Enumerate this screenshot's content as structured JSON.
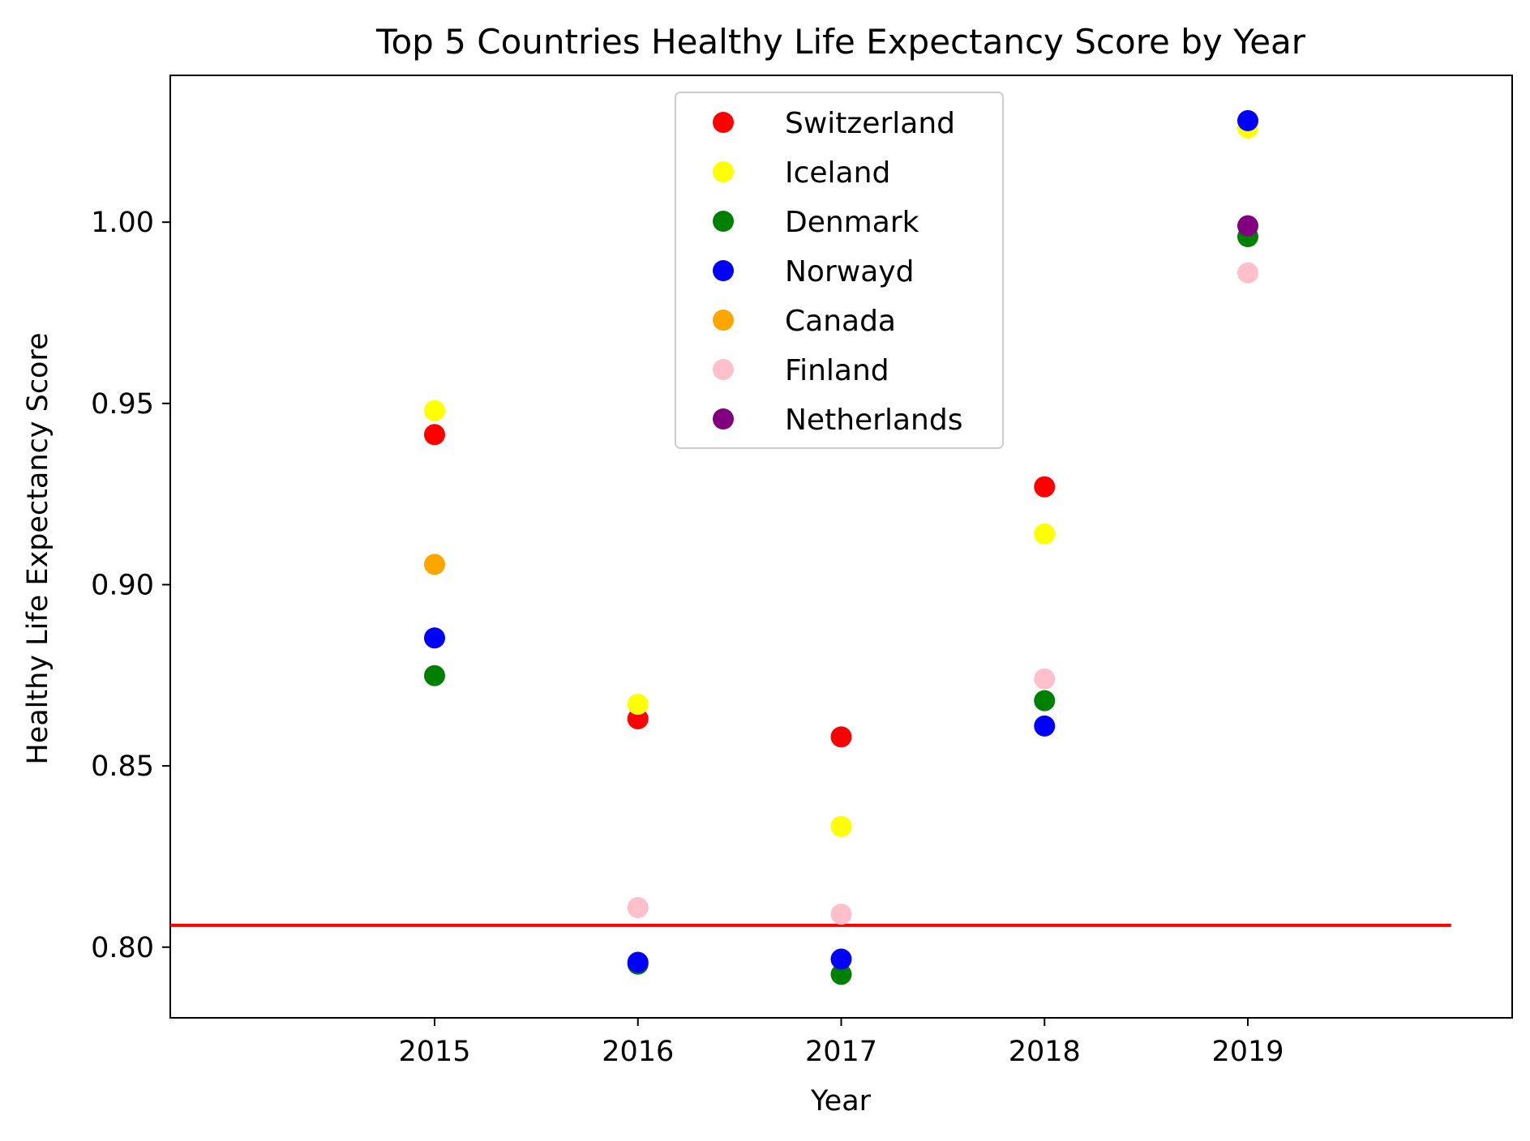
{
  "chart_data": {
    "type": "scatter",
    "title": "Top 5 Countries Healthy Life Expectancy Score by Year",
    "xlabel": "Year",
    "ylabel": "Healthy Life Expectancy Score",
    "x_ticks": [
      "2015",
      "2016",
      "2017",
      "2018",
      "2019"
    ],
    "y_ticks": [
      "0.80",
      "0.85",
      "0.90",
      "0.95",
      "1.00"
    ],
    "xlim": [
      2013.7,
      2020.3
    ],
    "ylim": [
      0.7805,
      1.0405
    ],
    "grid": false,
    "legend_position": "top-center",
    "reference_line": {
      "y": 0.806,
      "x_range": [
        2013.7,
        2020.0
      ],
      "color": "#ff0000"
    },
    "series": [
      {
        "name": "Switzerland",
        "color": "#ff0000",
        "points": [
          [
            2015,
            0.9414
          ],
          [
            2016,
            0.863
          ],
          [
            2017,
            0.858
          ],
          [
            2018,
            0.927
          ]
        ]
      },
      {
        "name": "Iceland",
        "color": "#ffff00",
        "points": [
          [
            2015,
            0.948
          ],
          [
            2016,
            0.867
          ],
          [
            2017,
            0.8333
          ],
          [
            2018,
            0.914
          ],
          [
            2019,
            1.026
          ]
        ]
      },
      {
        "name": "Denmark",
        "color": "#008000",
        "points": [
          [
            2015,
            0.8749
          ],
          [
            2016,
            0.7953
          ],
          [
            2017,
            0.7925
          ],
          [
            2018,
            0.868
          ],
          [
            2019,
            0.996
          ]
        ]
      },
      {
        "name": "Norwayd",
        "color": "#0000ff",
        "points": [
          [
            2015,
            0.8853
          ],
          [
            2016,
            0.7958
          ],
          [
            2017,
            0.7967
          ],
          [
            2018,
            0.861
          ],
          [
            2019,
            1.028
          ]
        ]
      },
      {
        "name": "Canada",
        "color": "#ffa500",
        "points": [
          [
            2015,
            0.9056
          ]
        ]
      },
      {
        "name": "Finland",
        "color": "#ffc0cb",
        "points": [
          [
            2016,
            0.8109
          ],
          [
            2017,
            0.8091
          ],
          [
            2018,
            0.874
          ],
          [
            2019,
            0.986
          ]
        ]
      },
      {
        "name": "Netherlands",
        "color": "#800080",
        "points": [
          [
            2019,
            0.999
          ]
        ]
      }
    ]
  }
}
